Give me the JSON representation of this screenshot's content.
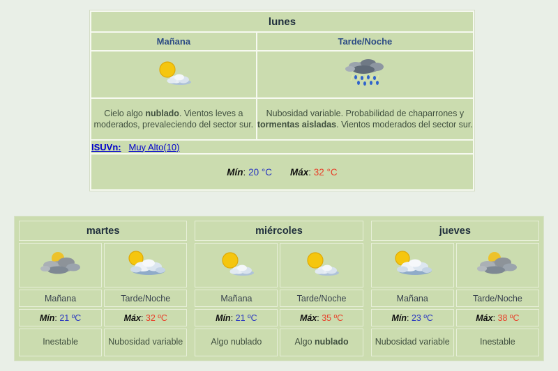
{
  "today": {
    "title": "lunes",
    "columns": [
      {
        "label": "Mañana",
        "icon": "sun-small-cloud",
        "description": [
          {
            "t": "Cielo algo "
          },
          {
            "t": "nublado",
            "b": true
          },
          {
            "t": ". Vientos leves a moderados, prevaleciendo del sector sur."
          }
        ]
      },
      {
        "label": "Tarde/Noche",
        "icon": "rain-cloud",
        "description": [
          {
            "t": "Nubosidad variable. Probabilidad de chaparrones y "
          },
          {
            "t": "tormentas aisladas",
            "b": true
          },
          {
            "t": ". Vientos moderados del sector sur."
          }
        ]
      }
    ],
    "uv": {
      "label": "ISUVn:",
      "value": "Muy Alto(10)"
    },
    "min_label": "Mín",
    "min_sep": ": ",
    "min_value": "20 °C",
    "max_label": "Máx",
    "max_sep": ": ",
    "max_value": "32 °C"
  },
  "forecast_days": [
    {
      "title": "martes",
      "cells": [
        {
          "period": "Mañana",
          "icon": "sun-behind-gray-clouds",
          "temp_label": "Mín",
          "temp_sep": ": ",
          "temp_value": "21 ºC",
          "temp_kind": "min",
          "condition": [
            {
              "t": "Inestable"
            }
          ]
        },
        {
          "period": "Tarde/Noche",
          "icon": "sun-big-clouds",
          "temp_label": "Máx",
          "temp_sep": ": ",
          "temp_value": "32 ºC",
          "temp_kind": "max",
          "condition": [
            {
              "t": "Nubosidad variable"
            }
          ]
        }
      ]
    },
    {
      "title": "miércoles",
      "cells": [
        {
          "period": "Mañana",
          "icon": "sun-small-cloud",
          "temp_label": "Mín",
          "temp_sep": ": ",
          "temp_value": "21 ºC",
          "temp_kind": "min",
          "condition": [
            {
              "t": "Algo nublado"
            }
          ]
        },
        {
          "period": "Tarde/Noche",
          "icon": "sun-small-cloud",
          "temp_label": "Máx",
          "temp_sep": ": ",
          "temp_value": "35 ºC",
          "temp_kind": "max",
          "condition": [
            {
              "t": "Algo "
            },
            {
              "t": "nublado",
              "b": true
            }
          ]
        }
      ]
    },
    {
      "title": "jueves",
      "cells": [
        {
          "period": "Mañana",
          "icon": "sun-big-clouds",
          "temp_label": "Mín",
          "temp_sep": ": ",
          "temp_value": "23 ºC",
          "temp_kind": "min",
          "condition": [
            {
              "t": "Nubosidad variable"
            }
          ]
        },
        {
          "period": "Tarde/Noche",
          "icon": "sun-behind-gray-clouds",
          "temp_label": "Máx",
          "temp_sep": ": ",
          "temp_value": "38 ºC",
          "temp_kind": "max",
          "condition": [
            {
              "t": "Inestable"
            }
          ]
        }
      ]
    }
  ],
  "colors": {
    "cell_green": "#cbdcaf",
    "page_bg": "#e9efe7",
    "min_blue": "#2936c0",
    "max_red": "#e8402a",
    "link_blue": "#0000cc",
    "header_navy": "#2c4b84"
  }
}
